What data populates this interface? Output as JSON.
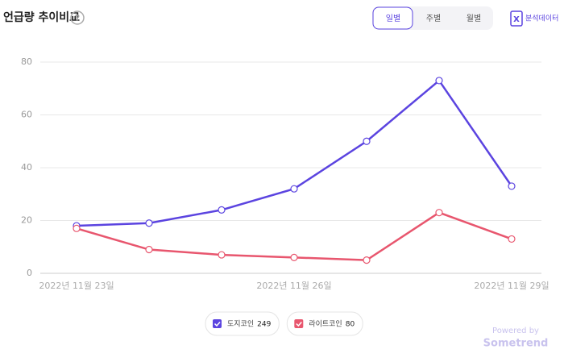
{
  "header": {
    "title": "언급량 추이비교",
    "help": "?",
    "tabs": [
      "일별",
      "주별",
      "월별"
    ],
    "selected_tab": 0,
    "export": "분석데이터"
  },
  "chart_data": {
    "type": "line",
    "categories": [
      "2022년 11월 23일",
      null,
      null,
      "2022년 11월 26일",
      null,
      null,
      "2022년 11월 29일"
    ],
    "series": [
      {
        "name": "도지코인",
        "total": 249,
        "color": "#5b44e0",
        "values": [
          18,
          19,
          24,
          32,
          50,
          73,
          33
        ]
      },
      {
        "name": "라이트코인",
        "total": 80,
        "color": "#e8566e",
        "values": [
          17,
          9,
          7,
          6,
          5,
          23,
          13
        ]
      }
    ],
    "ylim": [
      0,
      80
    ],
    "yticks": [
      0,
      20,
      40,
      60,
      80
    ],
    "grid": true
  },
  "footer": {
    "powered_by": "Powered by",
    "brand": "Sometrend"
  }
}
